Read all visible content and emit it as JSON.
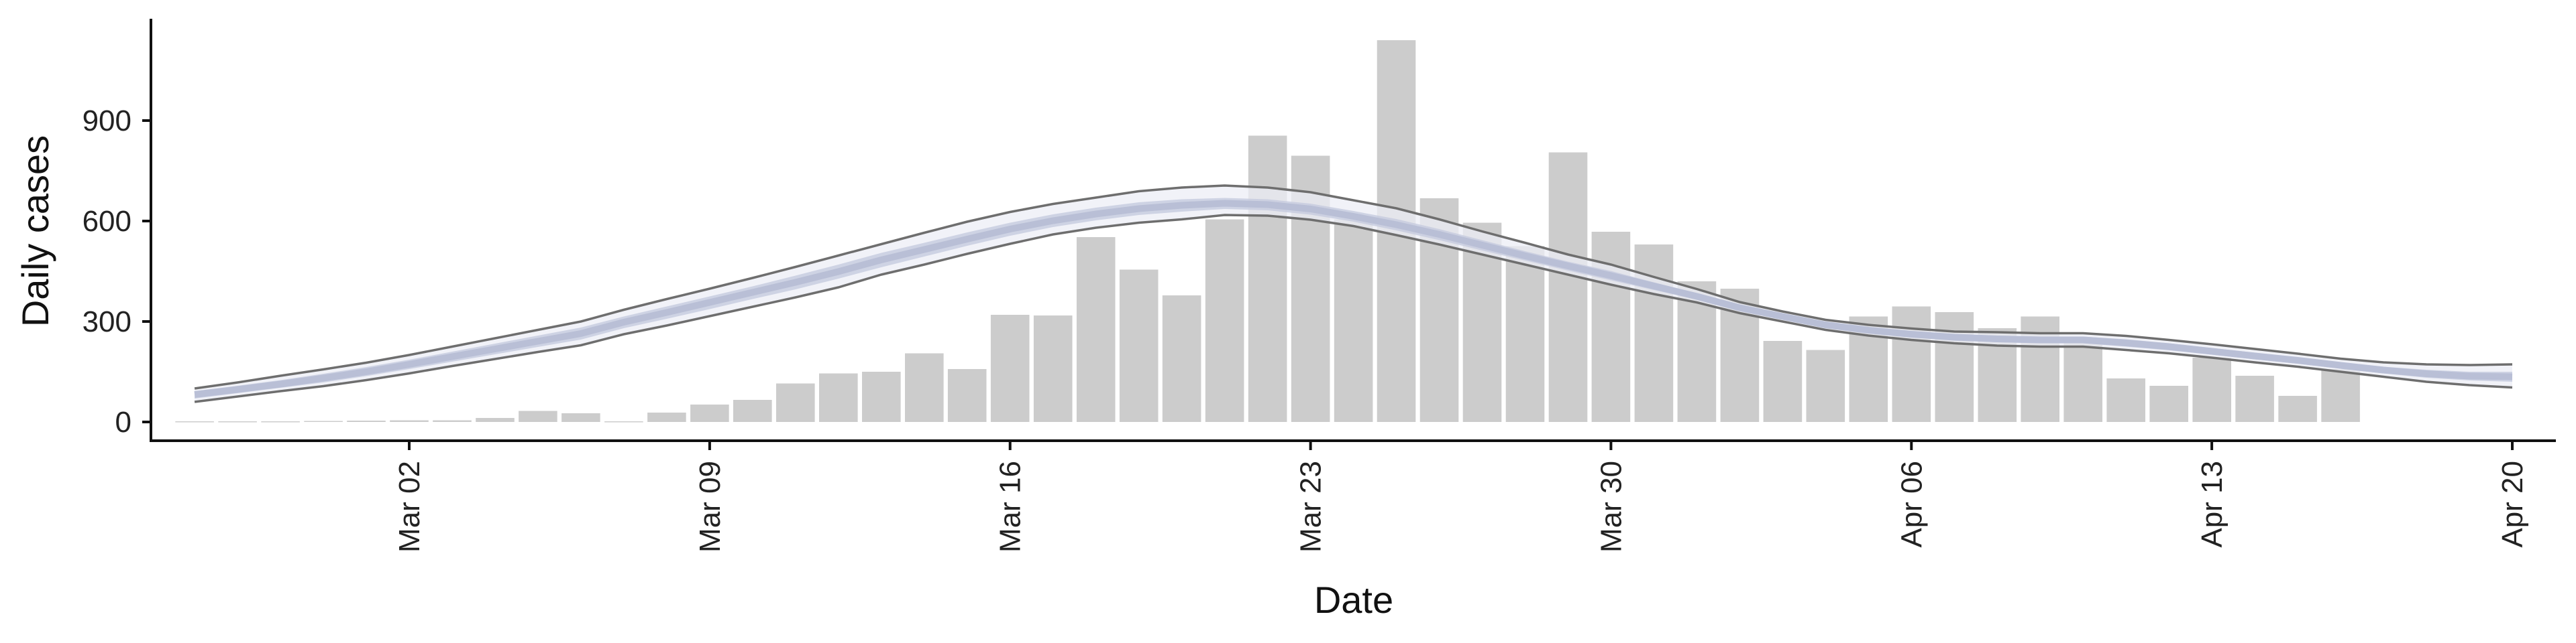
{
  "chart_data": {
    "type": "bar",
    "title": "",
    "xlabel": "Date",
    "ylabel": "Daily cases",
    "x_start": "2020-02-26",
    "xlim": [
      "2020-02-25",
      "2020-04-20"
    ],
    "ylim": [
      0,
      1150
    ],
    "yticks": [
      0,
      300,
      600,
      900
    ],
    "xticks": [
      {
        "date": "2020-03-02",
        "label": "Mar 02"
      },
      {
        "date": "2020-03-09",
        "label": "Mar 09"
      },
      {
        "date": "2020-03-16",
        "label": "Mar 16"
      },
      {
        "date": "2020-03-23",
        "label": "Mar 23"
      },
      {
        "date": "2020-03-30",
        "label": "Mar 30"
      },
      {
        "date": "2020-04-06",
        "label": "Apr 06"
      },
      {
        "date": "2020-04-13",
        "label": "Apr 13"
      },
      {
        "date": "2020-04-20",
        "label": "Apr 20"
      }
    ],
    "bars": [
      2,
      2,
      2,
      3,
      4,
      5,
      5,
      12,
      33,
      26,
      2,
      28,
      52,
      66,
      115,
      145,
      150,
      205,
      158,
      320,
      318,
      552,
      455,
      378,
      605,
      855,
      795,
      605,
      1140,
      668,
      595,
      525,
      805,
      568,
      530,
      420,
      398,
      242,
      215,
      315,
      345,
      328,
      280,
      315,
      248,
      130,
      108,
      192,
      138,
      78,
      158
    ],
    "band_outer_upper": [
      100,
      118,
      138,
      157,
      177,
      200,
      225,
      250,
      275,
      300,
      335,
      367,
      398,
      430,
      463,
      497,
      531,
      565,
      598,
      627,
      651,
      670,
      689,
      700,
      706,
      700,
      686,
      662,
      638,
      605,
      569,
      535,
      500,
      470,
      433,
      397,
      358,
      330,
      305,
      290,
      279,
      270,
      268,
      265,
      265,
      257,
      245,
      232,
      218,
      204,
      189,
      178,
      172,
      170,
      172
    ],
    "band_outer_lower": [
      60,
      76,
      92,
      107,
      125,
      145,
      167,
      188,
      209,
      229,
      262,
      288,
      316,
      344,
      372,
      402,
      440,
      470,
      502,
      532,
      560,
      580,
      595,
      605,
      618,
      616,
      604,
      585,
      558,
      530,
      500,
      470,
      440,
      410,
      382,
      357,
      325,
      300,
      275,
      258,
      245,
      235,
      228,
      225,
      225,
      215,
      205,
      192,
      178,
      165,
      150,
      135,
      120,
      110,
      103
    ],
    "band_inner_upper": [
      92,
      108,
      125,
      144,
      164,
      186,
      210,
      234,
      258,
      282,
      315,
      345,
      375,
      405,
      437,
      470,
      505,
      535,
      566,
      595,
      620,
      640,
      656,
      665,
      669,
      665,
      652,
      630,
      606,
      576,
      543,
      510,
      479,
      451,
      417,
      384,
      348,
      322,
      297,
      281,
      270,
      262,
      258,
      255,
      255,
      247,
      235,
      221,
      207,
      193,
      178,
      165,
      156,
      150,
      150
    ],
    "band_inner_lower": [
      70,
      86,
      102,
      118,
      137,
      158,
      180,
      202,
      224,
      246,
      280,
      308,
      337,
      367,
      396,
      428,
      462,
      494,
      526,
      556,
      582,
      602,
      618,
      628,
      636,
      632,
      619,
      598,
      572,
      543,
      512,
      482,
      452,
      423,
      394,
      366,
      334,
      308,
      283,
      266,
      254,
      244,
      238,
      235,
      235,
      225,
      214,
      201,
      187,
      174,
      159,
      145,
      132,
      124,
      120
    ],
    "band_median": [
      82,
      97,
      113,
      131,
      150,
      172,
      195,
      218,
      241,
      264,
      298,
      327,
      357,
      387,
      417,
      449,
      484,
      515,
      546,
      576,
      601,
      621,
      637,
      647,
      653,
      649,
      636,
      614,
      589,
      560,
      528,
      496,
      466,
      437,
      406,
      375,
      341,
      315,
      290,
      274,
      262,
      253,
      248,
      245,
      245,
      236,
      225,
      211,
      197,
      184,
      169,
      155,
      144,
      137,
      135
    ],
    "colors": {
      "bar": "#cccccc",
      "band_outer": "#eceef5",
      "band_inner": "#c5cade",
      "band_median": "#b9bfd6",
      "band_edge": "#6e6e6e"
    }
  }
}
